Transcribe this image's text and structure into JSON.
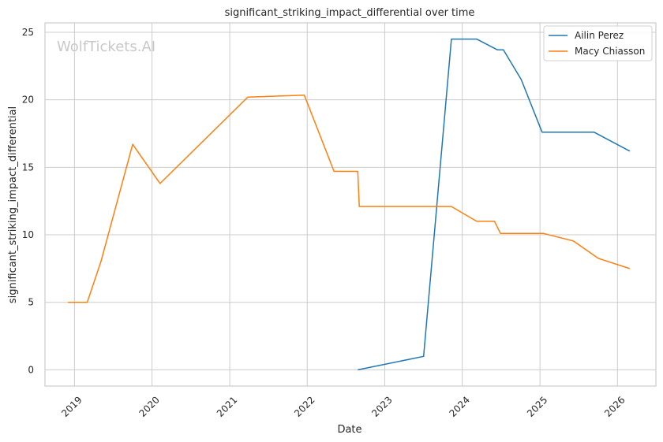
{
  "chart_data": {
    "type": "line",
    "title": "significant_striking_impact_differential over time",
    "xlabel": "Date",
    "ylabel": "significant_striking_impact_differential",
    "watermark": "WolfTickets.AI",
    "xlim": [
      "2018-08-15",
      "2026-07-01"
    ],
    "ylim": [
      -1.2,
      25.7
    ],
    "x_ticks": [
      "2019-01-01",
      "2020-01-01",
      "2021-01-01",
      "2022-01-01",
      "2023-01-01",
      "2024-01-01",
      "2025-01-01",
      "2026-01-01"
    ],
    "x_tick_labels": [
      "2019",
      "2020",
      "2021",
      "2022",
      "2023",
      "2024",
      "2025",
      "2026"
    ],
    "y_ticks": [
      0,
      5,
      10,
      15,
      20,
      25
    ],
    "y_tick_labels": [
      "0",
      "5",
      "10",
      "15",
      "20",
      "25"
    ],
    "grid": true,
    "legend_position": "top-right",
    "series": [
      {
        "name": "Ailin Perez",
        "color": "#1f77b4",
        "x": [
          "2022-08-27",
          "2023-07-03",
          "2023-11-11",
          "2024-03-09",
          "2024-06-15",
          "2024-07-13",
          "2024-10-05",
          "2025-01-11",
          "2025-04-05",
          "2025-09-13",
          "2026-02-28"
        ],
        "y": [
          0.0,
          1.0,
          24.5,
          24.5,
          23.7,
          23.7,
          21.5,
          17.6,
          17.6,
          17.6,
          16.2
        ]
      },
      {
        "name": "Macy Chiasson",
        "color": "#ff7f0e",
        "x": [
          "2018-12-01",
          "2019-03-02",
          "2019-05-05",
          "2019-10-02",
          "2020-02-08",
          "2021-03-27",
          "2021-12-18",
          "2022-05-07",
          "2022-08-27",
          "2022-09-03",
          "2023-11-11",
          "2024-03-09",
          "2024-06-01",
          "2024-06-29",
          "2025-01-18",
          "2025-06-07",
          "2025-10-04",
          "2026-02-28"
        ],
        "y": [
          5.0,
          5.0,
          8.0,
          16.7,
          13.8,
          20.2,
          20.35,
          14.7,
          14.7,
          12.1,
          12.1,
          11.0,
          11.0,
          10.1,
          10.1,
          9.55,
          8.25,
          7.5
        ]
      }
    ]
  }
}
